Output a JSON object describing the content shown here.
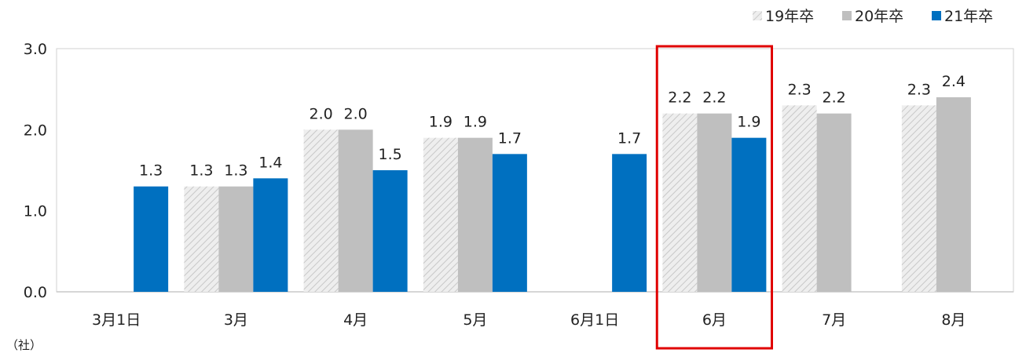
{
  "chart_data": {
    "type": "bar",
    "title": "",
    "xlabel": "",
    "ylabel": "",
    "unit_label": "（社）",
    "ylim": [
      0,
      3.0
    ],
    "yticks": [
      "0.0",
      "1.0",
      "2.0",
      "3.0"
    ],
    "grid": false,
    "legend_position": "top-right",
    "categories": [
      "3月1日",
      "3月",
      "4月",
      "5月",
      "6月1日",
      "6月",
      "7月",
      "8月"
    ],
    "series": [
      {
        "name": "19年卒",
        "values": [
          null,
          1.3,
          2.0,
          1.9,
          null,
          2.2,
          2.3,
          2.3
        ],
        "labels": [
          "",
          "1.3",
          "2.0",
          "1.9",
          "",
          "2.2",
          "2.3",
          "2.3"
        ],
        "color": "#d9d9d9",
        "pattern": "hatched"
      },
      {
        "name": "20年卒",
        "values": [
          null,
          1.3,
          2.0,
          1.9,
          null,
          2.2,
          2.2,
          2.4
        ],
        "labels": [
          "",
          "1.3",
          "2.0",
          "1.9",
          "",
          "2.2",
          "2.2",
          "2.4"
        ],
        "color": "#bfbfbf"
      },
      {
        "name": "21年卒",
        "values": [
          1.3,
          1.4,
          1.5,
          1.7,
          1.7,
          1.9,
          null,
          null
        ],
        "labels": [
          "1.3",
          "1.4",
          "1.5",
          "1.7",
          "1.7",
          "1.9",
          "",
          ""
        ],
        "color": "#0070c0"
      }
    ],
    "highlight_category": "6月",
    "highlight_color": "#e00000"
  }
}
